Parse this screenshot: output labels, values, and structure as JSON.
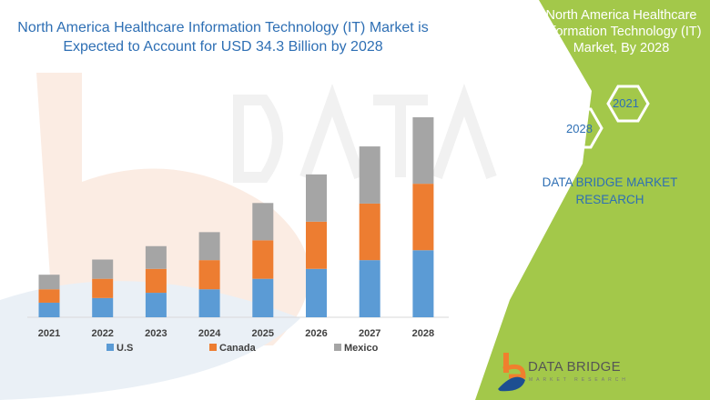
{
  "header": {
    "title": "North America Healthcare Information Technology (IT) Market is Expected to Account for USD 34.3 Billion by 2028"
  },
  "side_panel": {
    "title": "North America Healthcare Information Technology (IT) Market, By 2028",
    "hex_years": [
      "2021",
      "2028"
    ],
    "company": "DATA BRIDGE MARKET RESEARCH",
    "color": "#a3c84a"
  },
  "logo": {
    "name": "DATA BRIDGE",
    "tagline": "MARKET RESEARCH"
  },
  "chart_data": {
    "type": "bar",
    "stacked": true,
    "categories": [
      "2021",
      "2022",
      "2023",
      "2024",
      "2025",
      "2026",
      "2027",
      "2028"
    ],
    "series": [
      {
        "name": "U.S",
        "color": "#5b9bd5",
        "values": [
          2.5,
          3.3,
          4.2,
          4.8,
          6.6,
          8.3,
          9.8,
          11.5
        ]
      },
      {
        "name": "Canada",
        "color": "#ed7d31",
        "values": [
          2.3,
          3.3,
          4.1,
          5.0,
          6.6,
          8.1,
          9.7,
          11.4
        ]
      },
      {
        "name": "Mexico",
        "color": "#a5a5a5",
        "values": [
          2.5,
          3.3,
          3.9,
          4.8,
          6.4,
          8.1,
          9.8,
          11.4
        ]
      }
    ],
    "title": "",
    "xlabel": "",
    "ylabel": "",
    "ylim": [
      0,
      34.3
    ],
    "grid": false,
    "legend": "bottom",
    "y_axis_shown": false
  }
}
